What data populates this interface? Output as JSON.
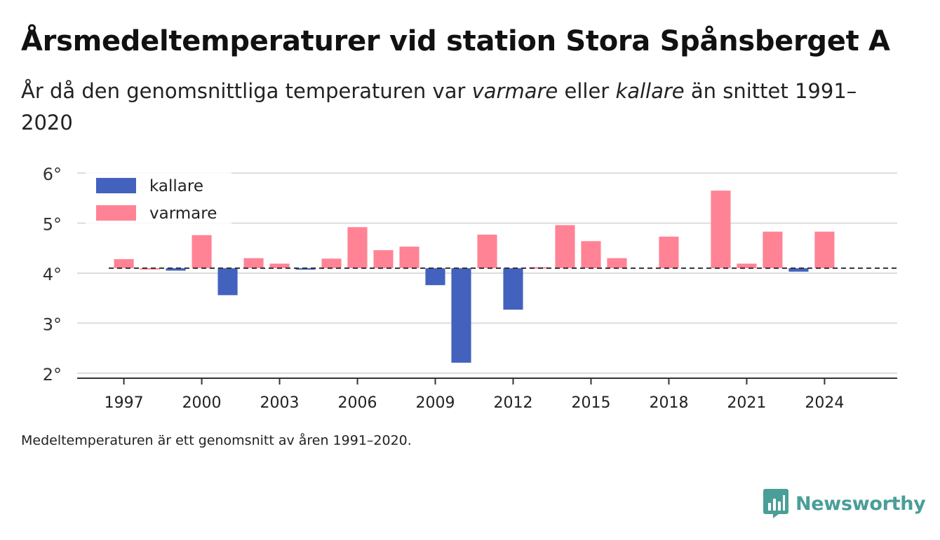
{
  "title": "Årsmedeltemperaturer vid station Stora Spånsberget A",
  "subtitle": {
    "part1": "År då den genomsnittliga temperaturen var ",
    "warm_word": "varmare",
    "part2": " eller ",
    "cold_word": "kallare",
    "part3": " än snittet 1991–2020"
  },
  "footnote": "Medeltemperaturen är ett genomsnitt av åren 1991–2020.",
  "brand": {
    "name": "Newsworthy",
    "icon": "newsworthy-logo-icon",
    "color": "#4a9e98"
  },
  "chart_data": {
    "type": "bar",
    "baseline": 4.1,
    "ylim": [
      1.9,
      6.1
    ],
    "yticks": [
      2,
      3,
      4,
      5,
      6
    ],
    "ytick_labels": [
      "2°",
      "3°",
      "4°",
      "5°",
      "6°"
    ],
    "xticks": [
      1997,
      2000,
      2003,
      2006,
      2009,
      2012,
      2015,
      2018,
      2021,
      2024
    ],
    "xlim": [
      1995.2,
      2026.8
    ],
    "legend": {
      "position": "top-left",
      "entries": [
        "kallare",
        "varmare"
      ]
    },
    "colors": {
      "kallare": "#4262be",
      "varmare": "#ff8395"
    },
    "years": [
      1997,
      1998,
      1999,
      2000,
      2001,
      2002,
      2003,
      2004,
      2005,
      2006,
      2007,
      2008,
      2009,
      2010,
      2011,
      2012,
      2013,
      2014,
      2015,
      2016,
      2018,
      2020,
      2021,
      2022,
      2023,
      2024
    ],
    "values": [
      4.28,
      4.1,
      4.05,
      4.76,
      3.56,
      4.3,
      4.19,
      4.07,
      4.29,
      4.92,
      4.46,
      4.53,
      3.76,
      2.21,
      4.77,
      3.27,
      4.12,
      4.96,
      4.64,
      4.3,
      4.73,
      5.65,
      4.19,
      4.83,
      4.03,
      4.83
    ]
  }
}
